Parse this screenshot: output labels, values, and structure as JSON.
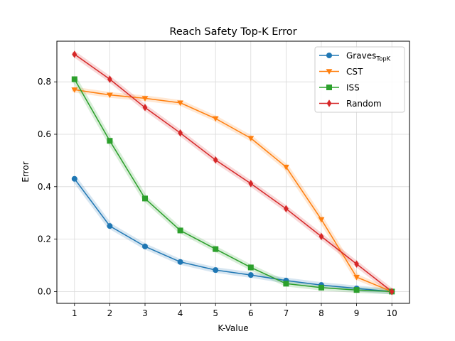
{
  "chart_data": {
    "type": "line",
    "title": "Reach Safety Top-K Error",
    "xlabel": "K-Value",
    "ylabel": "Error",
    "x": [
      1,
      2,
      3,
      4,
      5,
      6,
      7,
      8,
      9,
      10
    ],
    "xticks": [
      "1",
      "2",
      "3",
      "4",
      "5",
      "6",
      "7",
      "8",
      "9",
      "10"
    ],
    "yticks": [
      "0.0",
      "0.2",
      "0.4",
      "0.6",
      "0.8"
    ],
    "xlim": [
      0.5,
      10.5
    ],
    "ylim": [
      -0.045,
      0.955
    ],
    "grid": true,
    "legend_position": "top-right",
    "series": [
      {
        "name": "Graves",
        "name_subscript": "TopK",
        "color": "#1f77b4",
        "marker": "circle",
        "values": [
          0.43,
          0.25,
          0.172,
          0.113,
          0.082,
          0.063,
          0.042,
          0.025,
          0.012,
          0.0
        ]
      },
      {
        "name": "CST",
        "color": "#ff7f0e",
        "marker": "triangle-down",
        "values": [
          0.77,
          0.75,
          0.737,
          0.72,
          0.66,
          0.585,
          0.475,
          0.275,
          0.055,
          0.0
        ]
      },
      {
        "name": "ISS",
        "color": "#2ca02c",
        "marker": "square",
        "values": [
          0.81,
          0.575,
          0.355,
          0.233,
          0.162,
          0.092,
          0.03,
          0.015,
          0.006,
          0.0
        ]
      },
      {
        "name": "Random",
        "color": "#d62728",
        "marker": "diamond",
        "values": [
          0.905,
          0.81,
          0.702,
          0.605,
          0.502,
          0.412,
          0.316,
          0.21,
          0.105,
          0.0
        ]
      }
    ]
  }
}
